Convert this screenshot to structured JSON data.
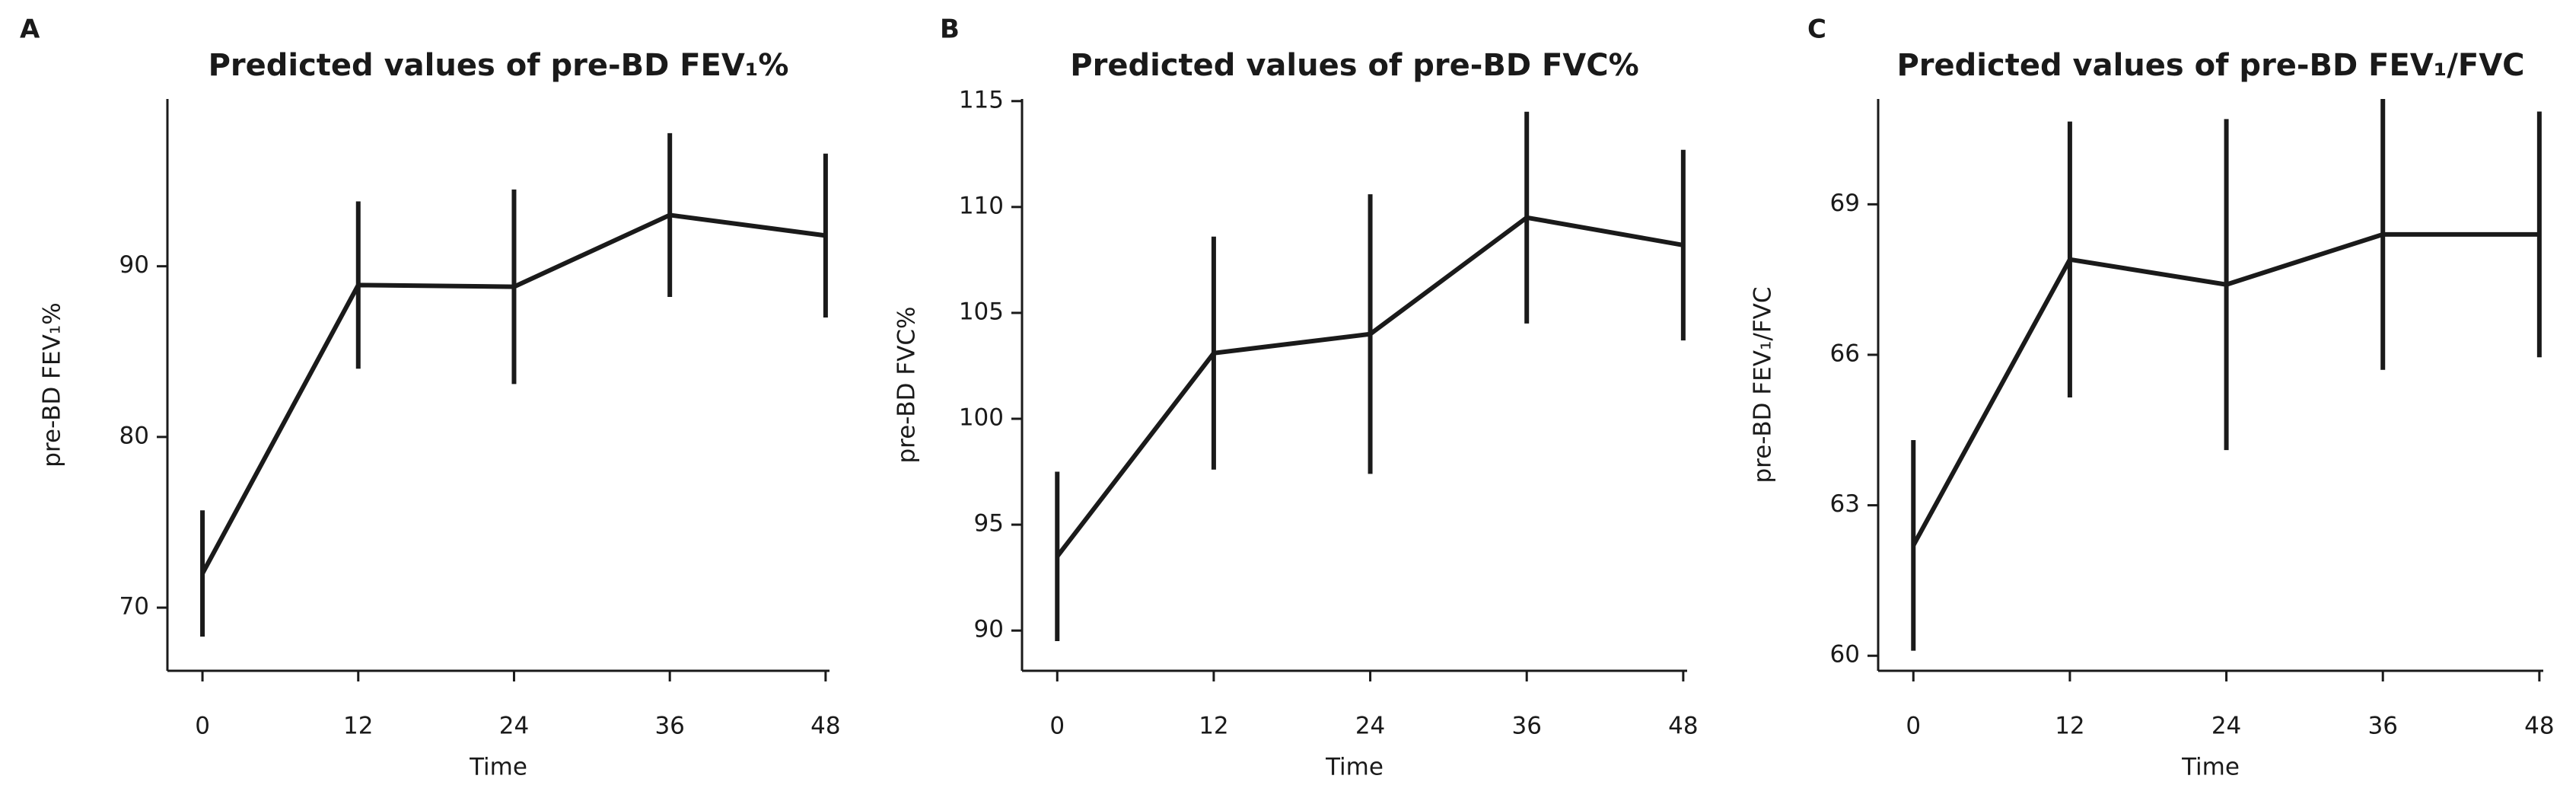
{
  "chart_data": [
    {
      "type": "line",
      "panel": "A",
      "title": "Predicted values of pre-BD FEV₁%",
      "x_label": "Time",
      "y_label": "pre-BD FEV₁%",
      "x": [
        0,
        12,
        24,
        36,
        48
      ],
      "values": [
        72.0,
        88.9,
        88.8,
        93.0,
        91.8
      ],
      "errors": [
        3.7,
        4.9,
        5.7,
        4.8,
        4.8
      ],
      "xlim": [
        -2.7,
        48.3
      ],
      "ylim": [
        66.3,
        99.8
      ],
      "xticks": [
        0,
        12,
        24,
        36,
        48
      ],
      "yticks": [
        70,
        80,
        90
      ],
      "color": "#1a1a1a"
    },
    {
      "type": "line",
      "panel": "B",
      "title": "Predicted values of pre-BD FVC%",
      "x_label": "Time",
      "y_label": "pre-BD FVC%",
      "x": [
        0,
        12,
        24,
        36,
        48
      ],
      "values": [
        93.5,
        103.1,
        104.0,
        109.5,
        108.2
      ],
      "errors": [
        4.0,
        5.5,
        6.6,
        5.0,
        4.5
      ],
      "xlim": [
        -2.7,
        48.3
      ],
      "ylim": [
        88.1,
        115.1
      ],
      "xticks": [
        0,
        12,
        24,
        36,
        48
      ],
      "yticks": [
        90,
        95,
        100,
        105,
        110,
        115
      ],
      "color": "#1a1a1a"
    },
    {
      "type": "line",
      "panel": "C",
      "title": "Predicted values of pre-BD FEV₁/FVC",
      "x_label": "Time",
      "y_label": "pre-BD FEV₁/FVC",
      "x": [
        0,
        12,
        24,
        36,
        48
      ],
      "values": [
        62.2,
        67.9,
        67.4,
        68.4,
        68.4
      ],
      "errors": [
        2.1,
        2.75,
        3.3,
        2.7,
        2.45
      ],
      "xlim": [
        -2.7,
        48.3
      ],
      "ylim": [
        59.7,
        71.1
      ],
      "xticks": [
        0,
        12,
        24,
        36,
        48
      ],
      "yticks": [
        60,
        63,
        66,
        69
      ],
      "color": "#1a1a1a"
    }
  ]
}
